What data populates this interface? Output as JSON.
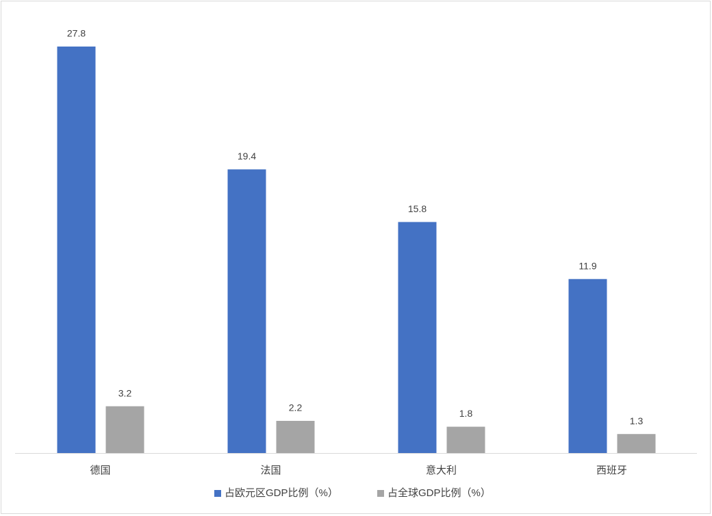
{
  "chart_data": {
    "type": "bar",
    "categories": [
      "德国",
      "法国",
      "意大利",
      "西班牙"
    ],
    "series": [
      {
        "name": "占欧元区GDP比例（%）",
        "color": "#4472c4",
        "values": [
          27.8,
          19.4,
          15.8,
          11.9
        ]
      },
      {
        "name": "占全球GDP比例（%）",
        "color": "#a5a5a5",
        "values": [
          3.2,
          2.2,
          1.8,
          1.3
        ]
      }
    ],
    "legend": "bottom"
  }
}
